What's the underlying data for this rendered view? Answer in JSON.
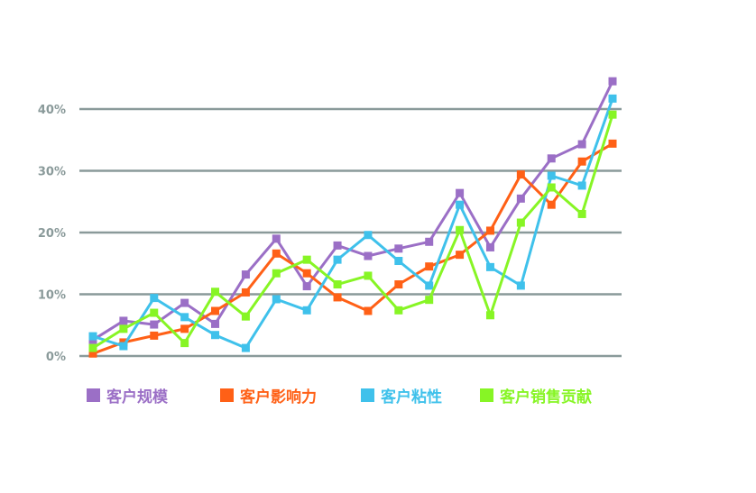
{
  "chart_data": {
    "type": "line",
    "title": "",
    "xlabel": "",
    "ylabel": "",
    "ylim": [
      0,
      40
    ],
    "y_ticks": [
      "0%",
      "10%",
      "20%",
      "30%",
      "40%"
    ],
    "y_tick_values": [
      0,
      10,
      20,
      30,
      40
    ],
    "grid": true,
    "legend_position": "bottom",
    "point_count": 18,
    "series": [
      {
        "name": "客户规模",
        "color": "#9b6fc6",
        "values": [
          2.6,
          5.7,
          5.1,
          8.6,
          5.2,
          13.2,
          19.0,
          11.3,
          17.9,
          16.2,
          17.4,
          18.5,
          26.4,
          17.6,
          25.5,
          32.0,
          34.3,
          44.5
        ]
      },
      {
        "name": "客户影响力",
        "color": "#ff6016",
        "values": [
          0.4,
          2.2,
          3.3,
          4.4,
          7.3,
          10.3,
          16.6,
          13.4,
          9.5,
          7.3,
          11.6,
          14.5,
          16.4,
          20.3,
          29.4,
          24.5,
          31.5,
          34.4
        ]
      },
      {
        "name": "客户粘性",
        "color": "#3fc1eb",
        "values": [
          3.2,
          1.6,
          9.4,
          6.3,
          3.4,
          1.3,
          9.2,
          7.4,
          15.6,
          19.6,
          15.4,
          11.4,
          24.5,
          14.4,
          11.4,
          29.2,
          27.6,
          41.7
        ]
      },
      {
        "name": "客户销售贡献",
        "color": "#87f525",
        "values": [
          1.3,
          4.4,
          7.0,
          2.1,
          10.4,
          6.4,
          13.4,
          15.6,
          11.6,
          13.0,
          7.4,
          9.1,
          20.4,
          6.6,
          21.6,
          27.3,
          23.0,
          39.1
        ]
      }
    ]
  },
  "style": {
    "grid_color": "#8a9a9a",
    "tick_label_color": "#8a9a9a"
  }
}
